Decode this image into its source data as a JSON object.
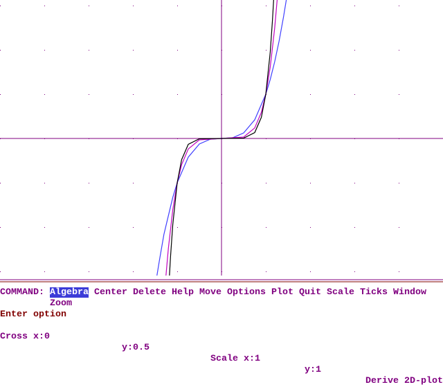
{
  "menu": {
    "label": "COMMAND:",
    "items": [
      "Algebra",
      "Center",
      "Delete",
      "Help",
      "Move",
      "Options",
      "Plot",
      "Quit",
      "Scale",
      "Ticks",
      "Window",
      "Zoom"
    ]
  },
  "prompt": "Enter option",
  "status": {
    "cross_x": "Cross x:0",
    "cross_y": "y:0.5",
    "scale_x": "Scale x:1",
    "scale_y": "y:1",
    "app": "Derive 2D-plot"
  }
}
